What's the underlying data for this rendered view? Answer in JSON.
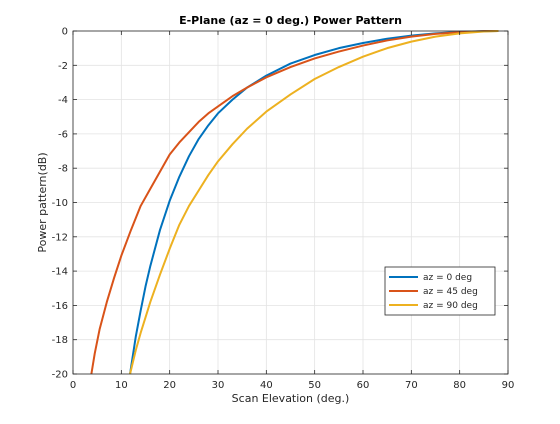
{
  "chart_data": {
    "type": "line",
    "title": "E-Plane (az = 0 deg.) Power Pattern",
    "xlabel": "Scan Elevation (deg.)",
    "ylabel": "Power pattern(dB)",
    "xlim": [
      0,
      90
    ],
    "ylim": [
      -20,
      0
    ],
    "xticks": [
      0,
      10,
      20,
      30,
      40,
      50,
      60,
      70,
      80,
      90
    ],
    "yticks": [
      0,
      -2,
      -4,
      -6,
      -8,
      -10,
      -12,
      -14,
      -16,
      -18,
      -20
    ],
    "grid": true,
    "legend_position": "lower-right",
    "series": [
      {
        "name": "az = 0 deg",
        "color": "#0072BD",
        "x": [
          11.8,
          13,
          14,
          15,
          16,
          18,
          20,
          22,
          24,
          26,
          28,
          30,
          33,
          36,
          40,
          45,
          50,
          55,
          60,
          65,
          70,
          75,
          80,
          85,
          88
        ],
        "y": [
          -20.0,
          -17.8,
          -16.3,
          -14.9,
          -13.7,
          -11.6,
          -9.9,
          -8.5,
          -7.3,
          -6.3,
          -5.5,
          -4.8,
          -4.0,
          -3.3,
          -2.6,
          -1.9,
          -1.4,
          -1.0,
          -0.7,
          -0.45,
          -0.27,
          -0.14,
          -0.05,
          -0.01,
          0.0
        ]
      },
      {
        "name": "az = 45 deg",
        "color": "#D95319",
        "x": [
          3.8,
          4.5,
          5.5,
          7,
          8.5,
          10,
          12,
          14,
          16,
          18,
          20,
          22,
          24,
          26,
          28,
          30,
          33,
          36,
          40,
          45,
          50,
          55,
          60,
          65,
          70,
          75,
          80,
          85,
          88
        ],
        "y": [
          -20.0,
          -18.8,
          -17.4,
          -15.8,
          -14.4,
          -13.1,
          -11.6,
          -10.2,
          -9.2,
          -8.2,
          -7.2,
          -6.5,
          -5.9,
          -5.3,
          -4.8,
          -4.4,
          -3.8,
          -3.3,
          -2.7,
          -2.1,
          -1.6,
          -1.2,
          -0.85,
          -0.55,
          -0.33,
          -0.17,
          -0.07,
          -0.01,
          0.0
        ]
      },
      {
        "name": "az = 90 deg",
        "color": "#EDB120",
        "x": [
          11.8,
          13,
          14,
          15,
          16,
          18,
          20,
          22,
          24,
          26,
          28,
          30,
          33,
          36,
          40,
          45,
          50,
          55,
          60,
          65,
          70,
          75,
          80,
          85,
          88
        ],
        "y": [
          -20.0,
          -18.6,
          -17.6,
          -16.7,
          -15.8,
          -14.2,
          -12.7,
          -11.3,
          -10.2,
          -9.3,
          -8.4,
          -7.6,
          -6.6,
          -5.7,
          -4.7,
          -3.7,
          -2.8,
          -2.1,
          -1.5,
          -1.0,
          -0.62,
          -0.33,
          -0.14,
          -0.03,
          0.0
        ]
      }
    ]
  }
}
